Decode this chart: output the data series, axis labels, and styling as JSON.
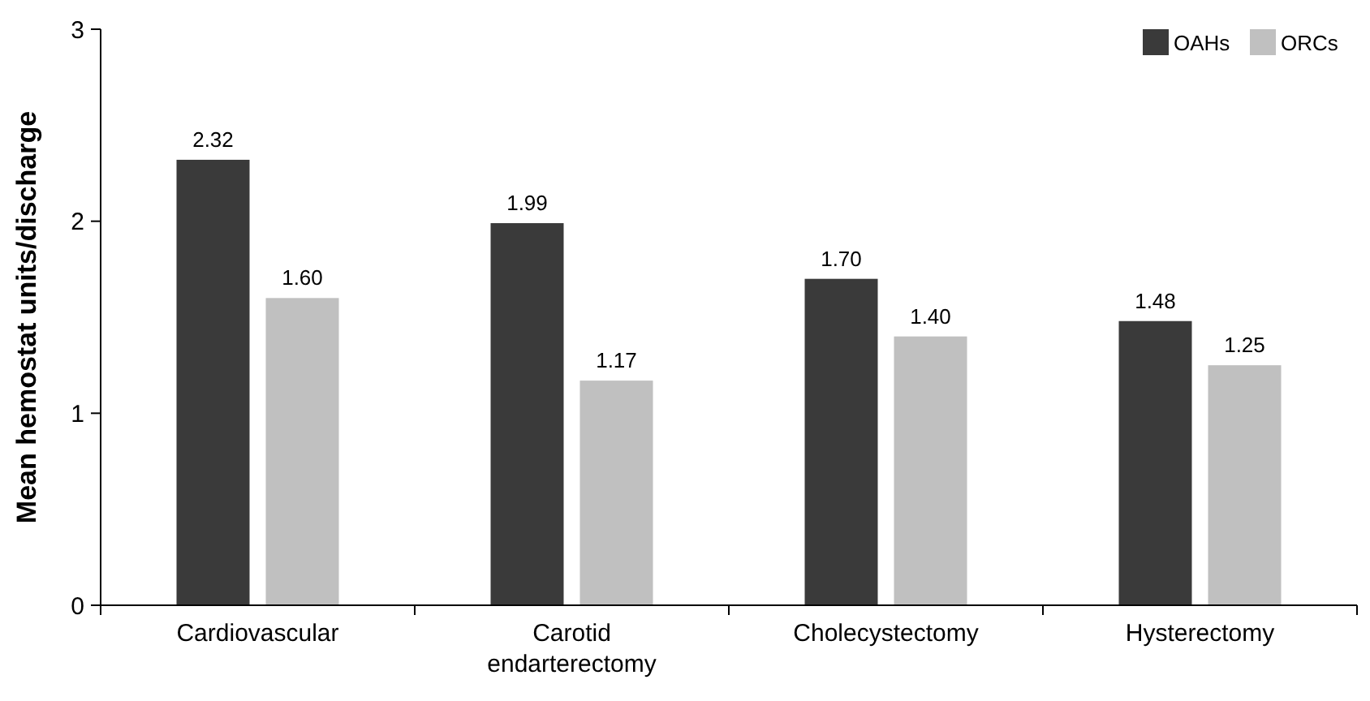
{
  "chart_data": {
    "type": "bar",
    "ylabel": "Mean hemostat units/discharge",
    "categories": [
      "Cardiovascular",
      "Carotid endarterectomy",
      "Cholecystectomy",
      "Hysterectomy"
    ],
    "series": [
      {
        "name": "OAHs",
        "color": "#3a3a3a",
        "values": [
          2.32,
          1.99,
          1.7,
          1.48
        ],
        "value_labels": [
          "2.32",
          "1.99",
          "1.70",
          "1.48"
        ]
      },
      {
        "name": "ORCs",
        "color": "#c0c0c0",
        "values": [
          1.6,
          1.17,
          1.4,
          1.25
        ],
        "value_labels": [
          "1.60",
          "1.17",
          "1.40",
          "1.25"
        ]
      }
    ],
    "ylim": [
      0,
      3
    ],
    "yticks": [
      0,
      1,
      2,
      3
    ],
    "grid": false,
    "legend": "top right"
  }
}
